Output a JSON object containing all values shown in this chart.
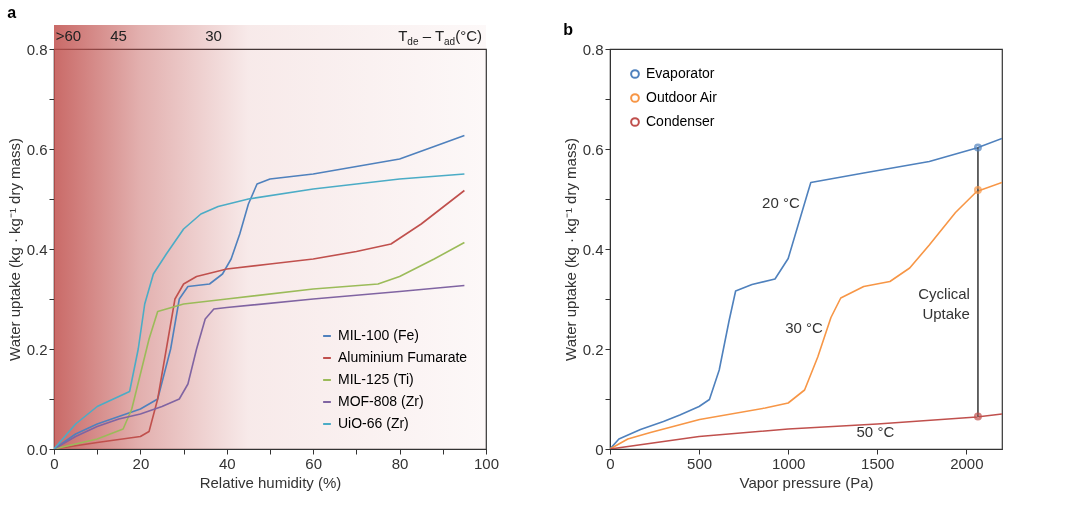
{
  "chart_data": [
    {
      "type": "line",
      "title": "a",
      "xlabel": "Relative humidity (%)",
      "ylabel": "Water uptake  (kg · kg⁻¹ dry mass)",
      "annotations": [
        ">60",
        "45",
        "30",
        "T$_{de}$ – T$_{ad}$(°C)"
      ],
      "xlim": [
        0,
        100
      ],
      "ylim": [
        0,
        0.8
      ],
      "xticks": [
        0,
        {
          "value": 10,
          "label": null
        },
        20,
        {
          "value": 30,
          "label": null
        },
        40,
        {
          "value": 50,
          "label": null
        },
        60,
        {
          "value": 70,
          "label": null
        },
        80,
        {
          "value": 90,
          "label": null
        },
        100
      ],
      "yticks": [
        {
          "value": 0,
          "label": "0.0"
        },
        {
          "value": 0.1,
          "label": null
        },
        0.2,
        {
          "value": 0.3,
          "label": null
        },
        0.4,
        {
          "value": 0.5,
          "label": null
        },
        0.6,
        {
          "value": 0.7,
          "label": null
        },
        0.8
      ],
      "bands": [
        {
          "axis": "x",
          "from": 0,
          "to": 100,
          "color": "#c0504d"
        }
      ],
      "legend": "bottom right",
      "grid": false,
      "series": [
        {
          "name": "MIL-100 (Fe)",
          "color": "#4f81bd",
          "x": [
            0,
            5,
            10,
            15,
            20,
            24,
            27,
            29,
            31,
            36,
            39,
            41,
            43,
            45,
            47,
            50,
            55,
            60,
            70,
            80,
            88,
            95
          ],
          "values": [
            0,
            0.03,
            0.05,
            0.065,
            0.08,
            0.1,
            0.2,
            0.3,
            0.325,
            0.33,
            0.35,
            0.38,
            0.43,
            0.49,
            0.53,
            0.54,
            0.545,
            0.55,
            0.565,
            0.58,
            0.605,
            0.627
          ]
        },
        {
          "name": "Aluminium Fumarate",
          "color": "#c0504d",
          "x": [
            0,
            10,
            20,
            22,
            24,
            26,
            28,
            30,
            33,
            40,
            50,
            60,
            70,
            78,
            85,
            95
          ],
          "values": [
            0,
            0.013,
            0.025,
            0.035,
            0.1,
            0.2,
            0.3,
            0.33,
            0.345,
            0.36,
            0.37,
            0.38,
            0.395,
            0.41,
            0.45,
            0.517
          ]
        },
        {
          "name": "MIL-125 (Ti)",
          "color": "#9bbb59",
          "x": [
            0,
            10,
            16,
            18,
            20,
            22,
            24,
            26,
            30,
            40,
            60,
            75,
            80,
            88,
            95
          ],
          "values": [
            0,
            0.02,
            0.04,
            0.08,
            0.15,
            0.22,
            0.275,
            0.28,
            0.29,
            0.3,
            0.32,
            0.33,
            0.345,
            0.38,
            0.413
          ]
        },
        {
          "name": "MOF-808 (Zr)",
          "color": "#8064a2",
          "x": [
            0,
            5,
            10,
            15,
            20,
            25,
            29,
            31,
            33,
            35,
            37,
            40,
            60,
            80,
            95
          ],
          "values": [
            0,
            0.025,
            0.045,
            0.06,
            0.07,
            0.085,
            0.1,
            0.13,
            0.2,
            0.26,
            0.28,
            0.283,
            0.3,
            0.315,
            0.327
          ]
        },
        {
          "name": "UiO-66 (Zr)",
          "color": "#4bacc6",
          "x": [
            0,
            5,
            10,
            17.5,
            19.5,
            21,
            23,
            26,
            30,
            34,
            38,
            45,
            60,
            80,
            95
          ],
          "values": [
            0,
            0.05,
            0.085,
            0.115,
            0.2,
            0.29,
            0.35,
            0.39,
            0.44,
            0.47,
            0.485,
            0.5,
            0.52,
            0.54,
            0.55
          ]
        }
      ]
    },
    {
      "type": "line",
      "title": "b",
      "xlabel": "Vapor pressure  (Pa)",
      "ylabel": "Water uptake  (kg · kg⁻¹ dry mass)",
      "xlim": [
        0,
        2200
      ],
      "ylim": [
        0,
        0.8
      ],
      "xticks": [
        0,
        500,
        1000,
        1500,
        2000
      ],
      "yticks": [
        0,
        {
          "value": 0.1,
          "label": null
        },
        0.2,
        {
          "value": 0.3,
          "label": null
        },
        0.4,
        {
          "value": 0.5,
          "label": null
        },
        0.6,
        {
          "value": 0.7,
          "label": null
        },
        0.8
      ],
      "legend": "top left",
      "grid": false,
      "annotations": [
        {
          "text": "20 °C",
          "x": 1110,
          "y": 0.513
        },
        {
          "text": "30 °C",
          "x": 1240,
          "y": 0.263
        },
        {
          "text": "50 °C",
          "x": 1640,
          "y": 0.054
        },
        {
          "text": "Cyclical\nUptake",
          "x": 2065,
          "y": 0.33
        }
      ],
      "series": [
        {
          "name": "Evaporator",
          "color": "#4f81bd",
          "x": [
            0,
            50,
            171,
            300,
            392,
            500,
            558,
            613,
            668,
            705,
            797,
            926,
            1000,
            1055,
            1110,
            1127,
            1424,
            1792,
            2058,
            2200
          ],
          "values": [
            0,
            0.02,
            0.039,
            0.055,
            0.068,
            0.085,
            0.099,
            0.158,
            0.256,
            0.316,
            0.329,
            0.34,
            0.381,
            0.447,
            0.513,
            0.533,
            0.552,
            0.575,
            0.602,
            0.621
          ]
        },
        {
          "name": "Outdoor Air",
          "color": "#f79646",
          "x": [
            0,
            100,
            227,
            503,
            871,
            1000,
            1092,
            1166,
            1240,
            1295,
            1424,
            1571,
            1682,
            1792,
            1939,
            2058,
            2200
          ],
          "values": [
            0,
            0.02,
            0.033,
            0.059,
            0.082,
            0.092,
            0.118,
            0.184,
            0.263,
            0.302,
            0.325,
            0.335,
            0.362,
            0.408,
            0.473,
            0.515,
            0.533
          ]
        },
        {
          "name": "Condenser",
          "color": "#c0504d",
          "x": [
            0,
            500,
            1000,
            1500,
            2058,
            2200
          ],
          "values": [
            0,
            0.025,
            0.04,
            0.05,
            0.064,
            0.07
          ]
        },
        {
          "type": "line",
          "color": "#404040",
          "x": [
            2065,
            2065
          ],
          "values": [
            0.065,
            0.603
          ]
        },
        {
          "type": "scatter",
          "colors": [
            "#4f81bd",
            "#f79646",
            "#c0504d"
          ],
          "x": [
            2065,
            2065,
            2065
          ],
          "values": [
            0.603,
            0.518,
            0.065
          ]
        }
      ]
    }
  ]
}
